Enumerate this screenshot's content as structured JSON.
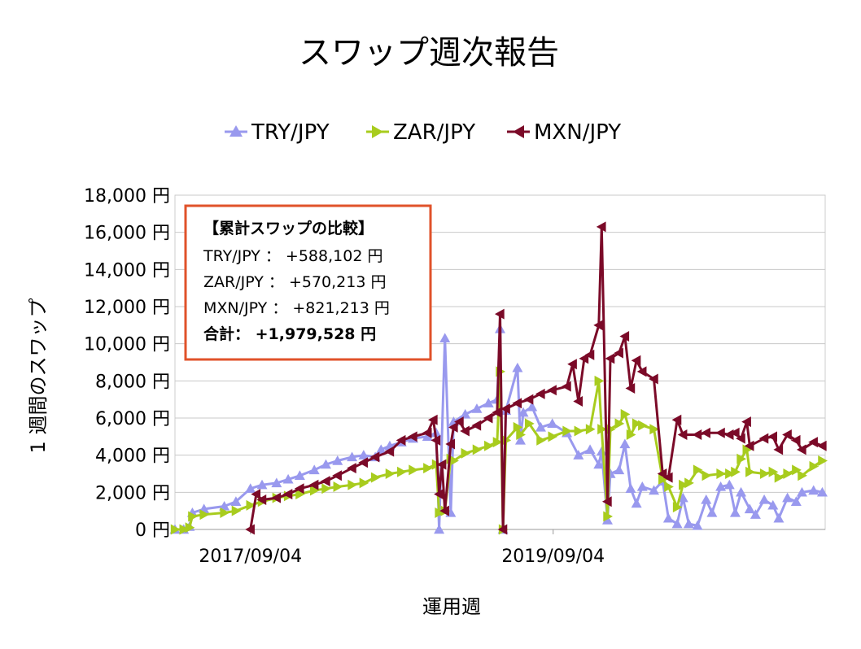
{
  "chart_data": {
    "type": "line",
    "title": "スワップ週次報告",
    "ylabel": "1 週間のスワップ",
    "xlabel": "運用週",
    "ylim": [
      0,
      18000
    ],
    "yticks": [
      "0 円",
      "2,000 円",
      "4,000 円",
      "6,000 円",
      "8,000 円",
      "10,000 円",
      "12,000 円",
      "14,000 円",
      "16,000 円",
      "18,000 円"
    ],
    "xticks": [
      "2017/09/04",
      "2019/09/04"
    ],
    "grid": true,
    "legend_position": "top",
    "series": [
      {
        "name": "TRY/JPY",
        "color": "#9999ee",
        "marker": "triangle-up",
        "values": [
          {
            "x": "2017-03-06",
            "y": 0
          },
          {
            "x": "2017-03-27",
            "y": 0
          },
          {
            "x": "2017-04-10",
            "y": 150
          },
          {
            "x": "2017-04-17",
            "y": 900
          },
          {
            "x": "2017-05-15",
            "y": 1100
          },
          {
            "x": "2017-07-03",
            "y": 1250
          },
          {
            "x": "2017-07-31",
            "y": 1500
          },
          {
            "x": "2017-09-04",
            "y": 2200
          },
          {
            "x": "2017-10-02",
            "y": 2400
          },
          {
            "x": "2017-11-06",
            "y": 2500
          },
          {
            "x": "2017-12-04",
            "y": 2700
          },
          {
            "x": "2018-01-01",
            "y": 2900
          },
          {
            "x": "2018-02-05",
            "y": 3200
          },
          {
            "x": "2018-03-05",
            "y": 3500
          },
          {
            "x": "2018-04-02",
            "y": 3700
          },
          {
            "x": "2018-05-07",
            "y": 3900
          },
          {
            "x": "2018-06-04",
            "y": 4000
          },
          {
            "x": "2018-07-02",
            "y": 3900
          },
          {
            "x": "2018-07-16",
            "y": 4300
          },
          {
            "x": "2018-08-06",
            "y": 4500
          },
          {
            "x": "2018-09-03",
            "y": 4700
          },
          {
            "x": "2018-10-01",
            "y": 4900
          },
          {
            "x": "2018-11-05",
            "y": 5000
          },
          {
            "x": "2018-11-26",
            "y": 5200
          },
          {
            "x": "2018-12-03",
            "y": 0
          },
          {
            "x": "2018-12-17",
            "y": 10300
          },
          {
            "x": "2018-12-31",
            "y": 900
          },
          {
            "x": "2019-01-07",
            "y": 5800
          },
          {
            "x": "2019-02-04",
            "y": 6200
          },
          {
            "x": "2019-03-04",
            "y": 6500
          },
          {
            "x": "2019-04-01",
            "y": 6800
          },
          {
            "x": "2019-04-22",
            "y": 7000
          },
          {
            "x": "2019-04-29",
            "y": 10800
          },
          {
            "x": "2019-05-06",
            "y": 0
          },
          {
            "x": "2019-05-13",
            "y": 6400
          },
          {
            "x": "2019-06-10",
            "y": 8700
          },
          {
            "x": "2019-06-17",
            "y": 4800
          },
          {
            "x": "2019-06-24",
            "y": 6300
          },
          {
            "x": "2019-07-15",
            "y": 6600
          },
          {
            "x": "2019-08-05",
            "y": 5500
          },
          {
            "x": "2019-09-02",
            "y": 5700
          },
          {
            "x": "2019-10-07",
            "y": 5200
          },
          {
            "x": "2019-11-04",
            "y": 4000
          },
          {
            "x": "2019-12-02",
            "y": 4300
          },
          {
            "x": "2019-12-23",
            "y": 3500
          },
          {
            "x": "2019-12-30",
            "y": 4200
          },
          {
            "x": "2020-01-13",
            "y": 500
          },
          {
            "x": "2020-01-20",
            "y": 3000
          },
          {
            "x": "2020-02-10",
            "y": 3200
          },
          {
            "x": "2020-02-24",
            "y": 4600
          },
          {
            "x": "2020-03-09",
            "y": 2200
          },
          {
            "x": "2020-03-23",
            "y": 1400
          },
          {
            "x": "2020-04-06",
            "y": 2300
          },
          {
            "x": "2020-05-04",
            "y": 2100
          },
          {
            "x": "2020-05-25",
            "y": 2600
          },
          {
            "x": "2020-06-08",
            "y": 600
          },
          {
            "x": "2020-06-29",
            "y": 300
          },
          {
            "x": "2020-07-13",
            "y": 1700
          },
          {
            "x": "2020-07-27",
            "y": 300
          },
          {
            "x": "2020-08-17",
            "y": 200
          },
          {
            "x": "2020-09-07",
            "y": 1600
          },
          {
            "x": "2020-09-21",
            "y": 900
          },
          {
            "x": "2020-10-12",
            "y": 2300
          },
          {
            "x": "2020-11-02",
            "y": 2400
          },
          {
            "x": "2020-11-16",
            "y": 900
          },
          {
            "x": "2020-11-30",
            "y": 2000
          },
          {
            "x": "2020-12-21",
            "y": 1100
          },
          {
            "x": "2021-01-04",
            "y": 800
          },
          {
            "x": "2021-01-25",
            "y": 1600
          },
          {
            "x": "2021-02-15",
            "y": 1300
          },
          {
            "x": "2021-03-01",
            "y": 600
          },
          {
            "x": "2021-03-22",
            "y": 1700
          },
          {
            "x": "2021-04-12",
            "y": 1500
          },
          {
            "x": "2021-04-26",
            "y": 2000
          },
          {
            "x": "2021-05-24",
            "y": 2100
          },
          {
            "x": "2021-06-14",
            "y": 2000
          }
        ]
      },
      {
        "name": "ZAR/JPY",
        "color": "#a8cc1e",
        "marker": "triangle-right",
        "values": [
          {
            "x": "2017-03-06",
            "y": 0
          },
          {
            "x": "2017-03-27",
            "y": 0
          },
          {
            "x": "2017-04-10",
            "y": 100
          },
          {
            "x": "2017-04-17",
            "y": 700
          },
          {
            "x": "2017-05-15",
            "y": 800
          },
          {
            "x": "2017-07-03",
            "y": 900
          },
          {
            "x": "2017-07-31",
            "y": 1000
          },
          {
            "x": "2017-09-04",
            "y": 1300
          },
          {
            "x": "2017-10-02",
            "y": 1500
          },
          {
            "x": "2017-11-06",
            "y": 1700
          },
          {
            "x": "2017-12-04",
            "y": 1800
          },
          {
            "x": "2018-01-01",
            "y": 1900
          },
          {
            "x": "2018-02-05",
            "y": 2100
          },
          {
            "x": "2018-03-05",
            "y": 2200
          },
          {
            "x": "2018-04-02",
            "y": 2300
          },
          {
            "x": "2018-05-07",
            "y": 2400
          },
          {
            "x": "2018-06-04",
            "y": 2500
          },
          {
            "x": "2018-07-02",
            "y": 2800
          },
          {
            "x": "2018-08-06",
            "y": 3000
          },
          {
            "x": "2018-09-03",
            "y": 3100
          },
          {
            "x": "2018-10-01",
            "y": 3200
          },
          {
            "x": "2018-11-05",
            "y": 3300
          },
          {
            "x": "2018-11-26",
            "y": 3500
          },
          {
            "x": "2018-12-03",
            "y": 900
          },
          {
            "x": "2018-12-17",
            "y": 1000
          },
          {
            "x": "2018-12-31",
            "y": 3800
          },
          {
            "x": "2019-01-07",
            "y": 3700
          },
          {
            "x": "2019-02-04",
            "y": 4100
          },
          {
            "x": "2019-03-04",
            "y": 4300
          },
          {
            "x": "2019-04-01",
            "y": 4500
          },
          {
            "x": "2019-04-22",
            "y": 4700
          },
          {
            "x": "2019-04-29",
            "y": 8500
          },
          {
            "x": "2019-05-06",
            "y": 0
          },
          {
            "x": "2019-05-13",
            "y": 4800
          },
          {
            "x": "2019-06-10",
            "y": 5500
          },
          {
            "x": "2019-06-17",
            "y": 5100
          },
          {
            "x": "2019-07-08",
            "y": 5700
          },
          {
            "x": "2019-08-05",
            "y": 4800
          },
          {
            "x": "2019-09-02",
            "y": 5000
          },
          {
            "x": "2019-10-07",
            "y": 5300
          },
          {
            "x": "2019-11-04",
            "y": 5300
          },
          {
            "x": "2019-12-02",
            "y": 5400
          },
          {
            "x": "2019-12-23",
            "y": 8000
          },
          {
            "x": "2019-12-30",
            "y": 5400
          },
          {
            "x": "2020-01-13",
            "y": 700
          },
          {
            "x": "2020-01-20",
            "y": 5400
          },
          {
            "x": "2020-02-10",
            "y": 5700
          },
          {
            "x": "2020-02-24",
            "y": 6200
          },
          {
            "x": "2020-03-09",
            "y": 5100
          },
          {
            "x": "2020-03-23",
            "y": 5700
          },
          {
            "x": "2020-04-06",
            "y": 5600
          },
          {
            "x": "2020-05-04",
            "y": 5400
          },
          {
            "x": "2020-05-25",
            "y": 2700
          },
          {
            "x": "2020-06-08",
            "y": 2300
          },
          {
            "x": "2020-06-29",
            "y": 1200
          },
          {
            "x": "2020-07-13",
            "y": 2400
          },
          {
            "x": "2020-07-27",
            "y": 2500
          },
          {
            "x": "2020-08-17",
            "y": 3200
          },
          {
            "x": "2020-09-07",
            "y": 2900
          },
          {
            "x": "2020-10-12",
            "y": 3000
          },
          {
            "x": "2020-11-02",
            "y": 3000
          },
          {
            "x": "2020-11-16",
            "y": 3100
          },
          {
            "x": "2020-11-30",
            "y": 3800
          },
          {
            "x": "2020-12-14",
            "y": 4300
          },
          {
            "x": "2020-12-21",
            "y": 3100
          },
          {
            "x": "2021-01-25",
            "y": 3000
          },
          {
            "x": "2021-02-15",
            "y": 3100
          },
          {
            "x": "2021-03-01",
            "y": 2800
          },
          {
            "x": "2021-03-22",
            "y": 3000
          },
          {
            "x": "2021-04-12",
            "y": 3200
          },
          {
            "x": "2021-04-26",
            "y": 2900
          },
          {
            "x": "2021-05-24",
            "y": 3400
          },
          {
            "x": "2021-06-14",
            "y": 3700
          }
        ]
      },
      {
        "name": "MXN/JPY",
        "color": "#7b0a28",
        "marker": "triangle-left",
        "values": [
          {
            "x": "2017-09-04",
            "y": 0
          },
          {
            "x": "2017-09-18",
            "y": 1900
          },
          {
            "x": "2017-10-02",
            "y": 1600
          },
          {
            "x": "2017-11-06",
            "y": 1700
          },
          {
            "x": "2017-12-04",
            "y": 1900
          },
          {
            "x": "2018-01-01",
            "y": 2200
          },
          {
            "x": "2018-02-05",
            "y": 2400
          },
          {
            "x": "2018-03-05",
            "y": 2600
          },
          {
            "x": "2018-04-02",
            "y": 2900
          },
          {
            "x": "2018-05-07",
            "y": 3300
          },
          {
            "x": "2018-06-04",
            "y": 3600
          },
          {
            "x": "2018-07-02",
            "y": 3900
          },
          {
            "x": "2018-08-06",
            "y": 4200
          },
          {
            "x": "2018-09-03",
            "y": 4800
          },
          {
            "x": "2018-10-01",
            "y": 5000
          },
          {
            "x": "2018-11-05",
            "y": 5200
          },
          {
            "x": "2018-11-19",
            "y": 5900
          },
          {
            "x": "2018-11-26",
            "y": 4800
          },
          {
            "x": "2018-12-03",
            "y": 1900
          },
          {
            "x": "2018-12-10",
            "y": 3500
          },
          {
            "x": "2018-12-17",
            "y": 1000
          },
          {
            "x": "2018-12-31",
            "y": 4600
          },
          {
            "x": "2019-01-07",
            "y": 5500
          },
          {
            "x": "2019-01-21",
            "y": 5800
          },
          {
            "x": "2019-02-04",
            "y": 5300
          },
          {
            "x": "2019-03-04",
            "y": 5600
          },
          {
            "x": "2019-04-01",
            "y": 6000
          },
          {
            "x": "2019-04-22",
            "y": 6300
          },
          {
            "x": "2019-04-29",
            "y": 11600
          },
          {
            "x": "2019-05-06",
            "y": 0
          },
          {
            "x": "2019-05-13",
            "y": 6500
          },
          {
            "x": "2019-06-10",
            "y": 6800
          },
          {
            "x": "2019-07-08",
            "y": 7000
          },
          {
            "x": "2019-08-05",
            "y": 7300
          },
          {
            "x": "2019-09-02",
            "y": 7500
          },
          {
            "x": "2019-10-07",
            "y": 7700
          },
          {
            "x": "2019-10-21",
            "y": 8900
          },
          {
            "x": "2019-11-04",
            "y": 6900
          },
          {
            "x": "2019-11-18",
            "y": 9200
          },
          {
            "x": "2019-12-02",
            "y": 9400
          },
          {
            "x": "2019-12-23",
            "y": 11000
          },
          {
            "x": "2019-12-30",
            "y": 16300
          },
          {
            "x": "2020-01-13",
            "y": 1500
          },
          {
            "x": "2020-01-20",
            "y": 9200
          },
          {
            "x": "2020-02-10",
            "y": 9500
          },
          {
            "x": "2020-02-24",
            "y": 10400
          },
          {
            "x": "2020-03-09",
            "y": 7600
          },
          {
            "x": "2020-03-23",
            "y": 9100
          },
          {
            "x": "2020-04-06",
            "y": 8500
          },
          {
            "x": "2020-05-04",
            "y": 8100
          },
          {
            "x": "2020-05-25",
            "y": 3000
          },
          {
            "x": "2020-06-08",
            "y": 2800
          },
          {
            "x": "2020-06-29",
            "y": 5900
          },
          {
            "x": "2020-07-13",
            "y": 5100
          },
          {
            "x": "2020-08-17",
            "y": 5100
          },
          {
            "x": "2020-09-07",
            "y": 5200
          },
          {
            "x": "2020-10-12",
            "y": 5200
          },
          {
            "x": "2020-11-02",
            "y": 5100
          },
          {
            "x": "2020-11-16",
            "y": 5200
          },
          {
            "x": "2020-11-30",
            "y": 4900
          },
          {
            "x": "2020-12-14",
            "y": 5800
          },
          {
            "x": "2020-12-21",
            "y": 4500
          },
          {
            "x": "2021-01-25",
            "y": 4900
          },
          {
            "x": "2021-02-15",
            "y": 5000
          },
          {
            "x": "2021-03-01",
            "y": 4300
          },
          {
            "x": "2021-03-22",
            "y": 5100
          },
          {
            "x": "2021-04-12",
            "y": 4800
          },
          {
            "x": "2021-04-26",
            "y": 4300
          },
          {
            "x": "2021-05-24",
            "y": 4700
          },
          {
            "x": "2021-06-14",
            "y": 4500
          }
        ]
      }
    ]
  },
  "summary_box": {
    "heading": "【累計スワップの比較】",
    "rows": [
      "TRY/JPY ： +588,102 円",
      "ZAR/JPY ： +570,213 円",
      "MXN/JPY ： +821,213 円"
    ],
    "total": "合計： +1,979,528 円",
    "border_color": "#e0522a"
  }
}
